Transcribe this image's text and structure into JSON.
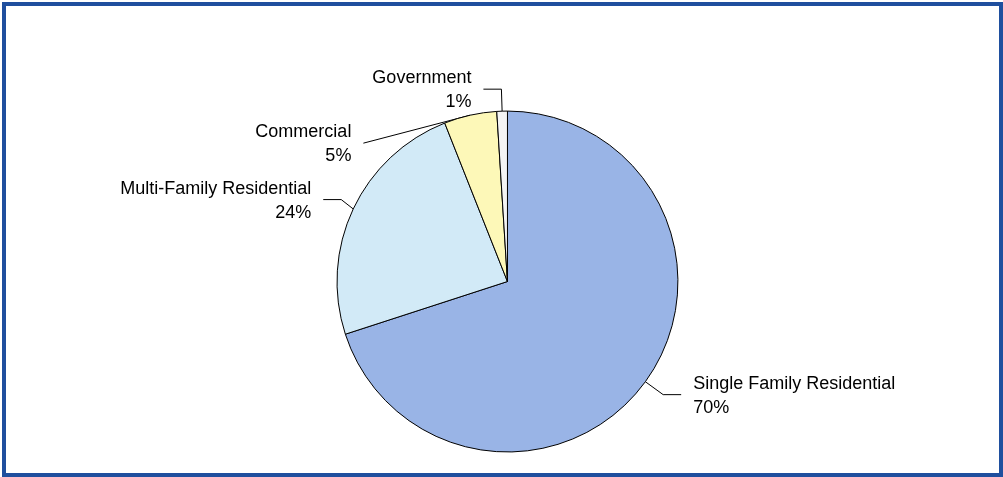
{
  "chart_data": {
    "type": "pie",
    "categories": [
      "Single Family Residential",
      "Multi-Family Residential",
      "Commercial",
      "Government"
    ],
    "values": [
      70,
      24,
      5,
      1
    ],
    "value_labels": [
      "70%",
      "24%",
      "5%",
      "1%"
    ],
    "colors": [
      "#99b4e6",
      "#d2eaf7",
      "#fdf8b8",
      "#f4f4f4"
    ],
    "legend": false
  }
}
